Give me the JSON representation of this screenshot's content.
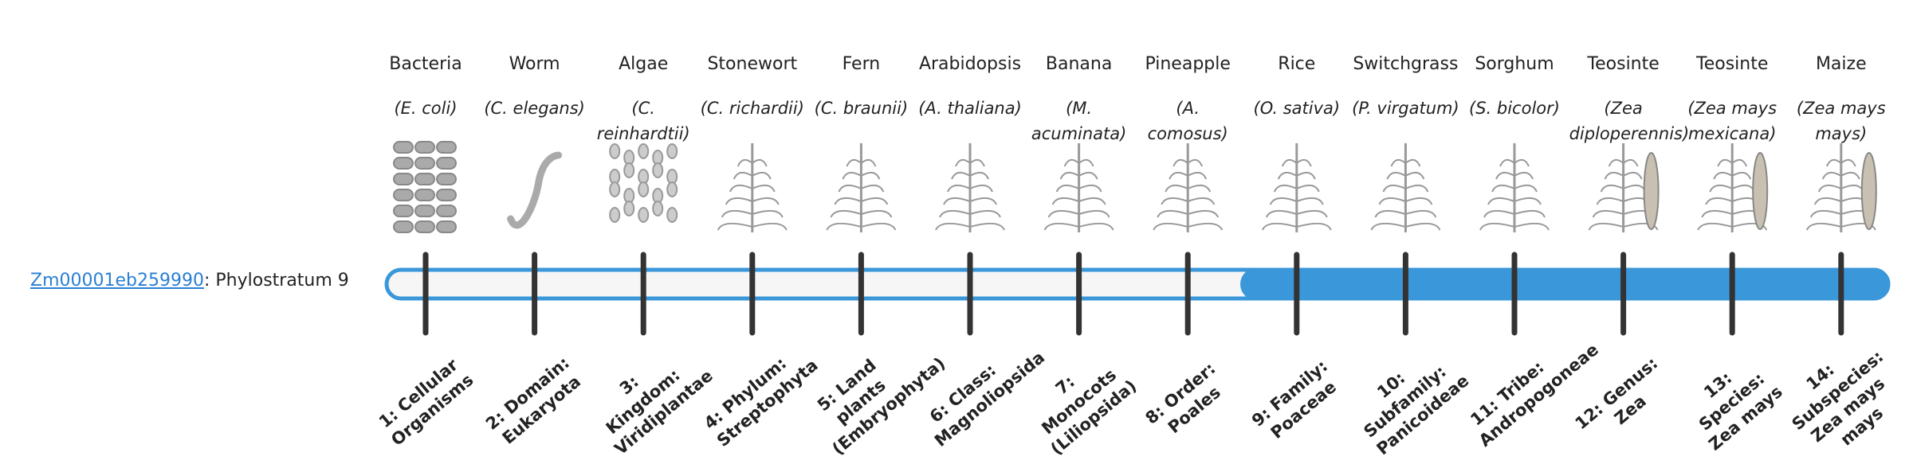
{
  "gene": {
    "id": "Zm00001eb259990",
    "phylostratum": ": Phylostratum 9"
  },
  "organisms": [
    {
      "name": "Bacteria",
      "latin": "(E. coli)",
      "stratum": "1: Cellular Organisms"
    },
    {
      "name": "Worm",
      "latin": "(C. elegans)",
      "stratum": "2: Domain: Eukaryota"
    },
    {
      "name": "Algae",
      "latin": "(C. reinhardtii)",
      "stratum": "3: Kingdom: Viridiplantae"
    },
    {
      "name": "Stonewort",
      "latin": "(C. richardii)",
      "stratum": "4: Phylum: Streptophyta"
    },
    {
      "name": "Fern",
      "latin": "(C. braunii)",
      "stratum": "5: Land plants (Embryophyta)"
    },
    {
      "name": "Arabidopsis",
      "latin": "(A. thaliana)",
      "stratum": "6: Class: Magnoliopsida"
    },
    {
      "name": "Banana",
      "latin": "(M. acuminata)",
      "stratum": "7: Monocots (Liliopsida)"
    },
    {
      "name": "Pineapple",
      "latin": "(A. comosus)",
      "stratum": "8: Order: Poales"
    },
    {
      "name": "Rice",
      "latin": "(O. sativa)",
      "stratum": "9: Family: Poaceae"
    },
    {
      "name": "Switchgrass",
      "latin": "(P. virgatum)",
      "stratum": "10: Subfamily: Panicoideae"
    },
    {
      "name": "Sorghum",
      "latin": "(S. bicolor)",
      "stratum": "11: Tribe: Andropogoneae"
    },
    {
      "name": "Teosinte",
      "latin": "(Zea diploperennis)",
      "stratum": "12: Genus: Zea"
    },
    {
      "name": "Teosinte",
      "latin": "(Zea mays mexicana)",
      "stratum": "13: Species: Zea mays"
    },
    {
      "name": "Maize",
      "latin": "(Zea mays mays)",
      "stratum": "14: Subspecies: Zea mays mays"
    }
  ]
}
